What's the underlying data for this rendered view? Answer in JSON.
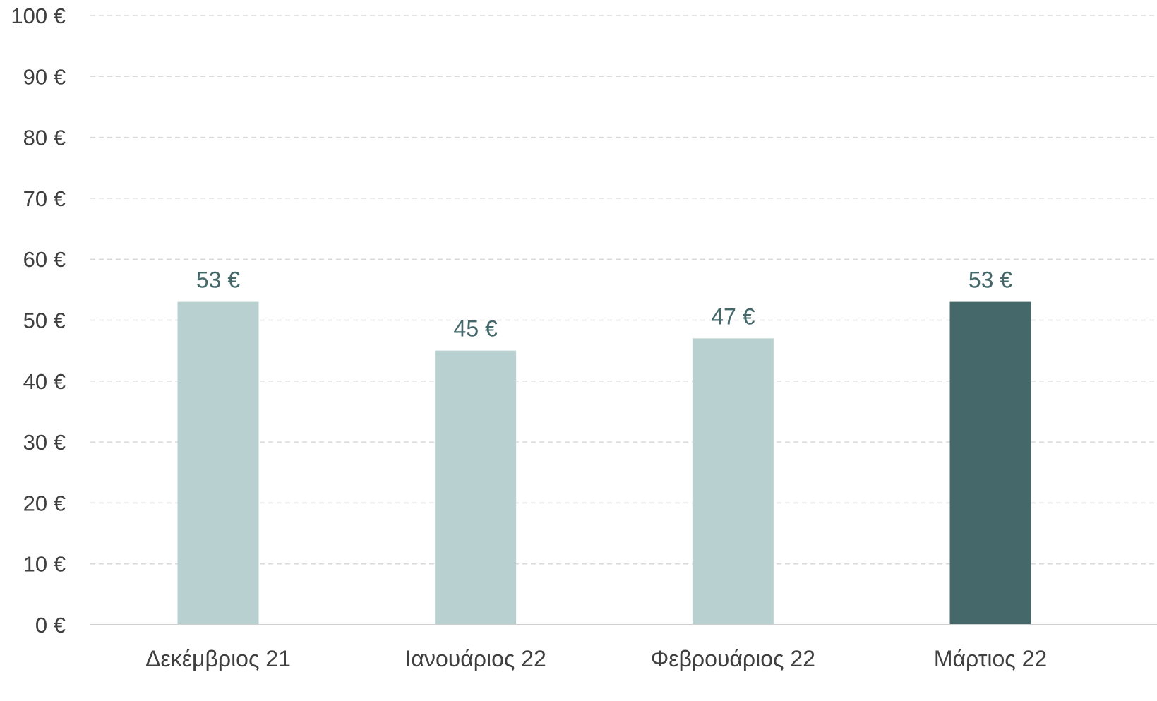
{
  "chart_data": {
    "type": "bar",
    "title": "",
    "xlabel": "",
    "ylabel": "",
    "categories": [
      "Δεκέμβριος 21",
      "Ιανουάριος 22",
      "Φεβρουάριος 22",
      "Μάρτιος 22"
    ],
    "values": [
      53,
      45,
      47,
      53
    ],
    "value_labels": [
      "53 €",
      "45 €",
      "47 €",
      "53 €"
    ],
    "ylim": [
      0,
      100
    ],
    "yticks": [
      0,
      10,
      20,
      30,
      40,
      50,
      60,
      70,
      80,
      90,
      100
    ],
    "ytick_labels": [
      "0 €",
      "10 €",
      "20 €",
      "30 €",
      "40 €",
      "50 €",
      "60 €",
      "70 €",
      "80 €",
      "90 €",
      "100 €"
    ],
    "grid": true,
    "grid_style": "dashed",
    "legend": "none",
    "colors": {
      "bar": "#b8d1d0",
      "highlight_bar": "#45686a",
      "highlight_index": 3,
      "data_label": "#44676a",
      "tick_label": "#3f3f3f",
      "grid": "#d9d9d9"
    }
  }
}
